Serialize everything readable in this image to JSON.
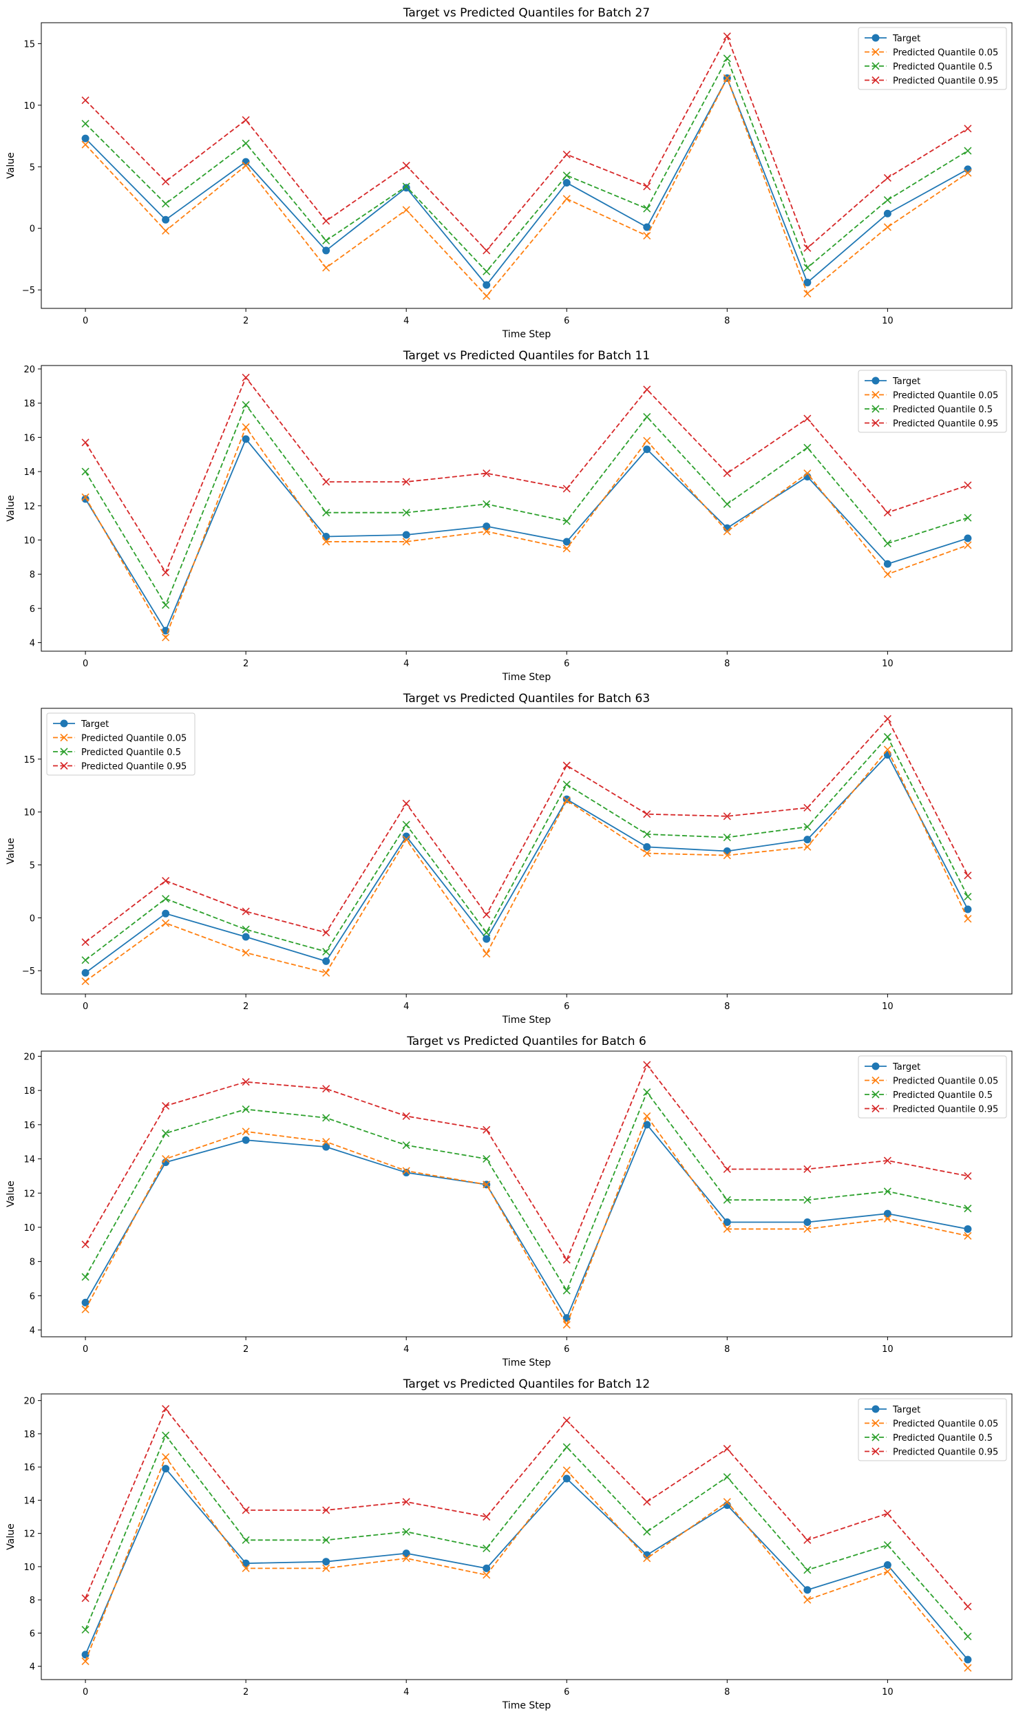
{
  "chart_data": [
    {
      "type": "line",
      "title": "Target vs Predicted Quantiles for Batch 27",
      "xlabel": "Time Step",
      "ylabel": "Value",
      "xlim": [
        -0.55,
        11.55
      ],
      "ylim": [
        -6.5,
        16.7
      ],
      "xticks": [
        0,
        2,
        4,
        6,
        8,
        10
      ],
      "yticks": [
        -5,
        0,
        5,
        10,
        15
      ],
      "legend_position": "upper right",
      "x": [
        0,
        1,
        2,
        3,
        4,
        5,
        6,
        7,
        8,
        9,
        10,
        11
      ],
      "series": [
        {
          "name": "Target",
          "color": "#1f77b4",
          "style": "solid",
          "marker": "circle",
          "values": [
            7.3,
            0.7,
            5.4,
            -1.8,
            3.3,
            -4.6,
            3.7,
            0.1,
            12.2,
            -4.4,
            1.2,
            4.8
          ]
        },
        {
          "name": "Predicted Quantile 0.05",
          "color": "#ff7f0e",
          "style": "dashed",
          "marker": "x",
          "values": [
            6.8,
            -0.2,
            5.1,
            -3.2,
            1.5,
            -5.5,
            2.4,
            -0.6,
            12.2,
            -5.3,
            0.1,
            4.5
          ]
        },
        {
          "name": "Predicted Quantile 0.5",
          "color": "#2ca02c",
          "style": "dashed",
          "marker": "x",
          "values": [
            8.5,
            2.0,
            6.9,
            -1.0,
            3.4,
            -3.5,
            4.3,
            1.6,
            13.8,
            -3.2,
            2.3,
            6.3
          ]
        },
        {
          "name": "Predicted Quantile 0.95",
          "color": "#d62728",
          "style": "dashed",
          "marker": "x",
          "values": [
            10.4,
            3.8,
            8.8,
            0.6,
            5.1,
            -1.8,
            6.0,
            3.4,
            15.6,
            -1.6,
            4.1,
            8.1
          ]
        }
      ]
    },
    {
      "type": "line",
      "title": "Target vs Predicted Quantiles for Batch 11",
      "xlabel": "Time Step",
      "ylabel": "Value",
      "xlim": [
        -0.55,
        11.55
      ],
      "ylim": [
        3.5,
        20.2
      ],
      "xticks": [
        0,
        2,
        4,
        6,
        8,
        10
      ],
      "yticks": [
        4,
        6,
        8,
        10,
        12,
        14,
        16,
        18,
        20
      ],
      "legend_position": "upper right",
      "x": [
        0,
        1,
        2,
        3,
        4,
        5,
        6,
        7,
        8,
        9,
        10,
        11
      ],
      "series": [
        {
          "name": "Target",
          "color": "#1f77b4",
          "style": "solid",
          "marker": "circle",
          "values": [
            12.4,
            4.7,
            15.9,
            10.2,
            10.3,
            10.8,
            9.9,
            15.3,
            10.7,
            13.7,
            8.6,
            10.1
          ]
        },
        {
          "name": "Predicted Quantile 0.05",
          "color": "#ff7f0e",
          "style": "dashed",
          "marker": "x",
          "values": [
            12.5,
            4.3,
            16.6,
            9.9,
            9.9,
            10.5,
            9.5,
            15.8,
            10.5,
            13.9,
            8.0,
            9.7
          ]
        },
        {
          "name": "Predicted Quantile 0.5",
          "color": "#2ca02c",
          "style": "dashed",
          "marker": "x",
          "values": [
            14.0,
            6.2,
            17.9,
            11.6,
            11.6,
            12.1,
            11.1,
            17.2,
            12.1,
            15.4,
            9.8,
            11.3
          ]
        },
        {
          "name": "Predicted Quantile 0.95",
          "color": "#d62728",
          "style": "dashed",
          "marker": "x",
          "values": [
            15.7,
            8.1,
            19.5,
            13.4,
            13.4,
            13.9,
            13.0,
            18.8,
            13.9,
            17.1,
            11.6,
            13.2
          ]
        }
      ]
    },
    {
      "type": "line",
      "title": "Target vs Predicted Quantiles for Batch 63",
      "xlabel": "Time Step",
      "ylabel": "Value",
      "xlim": [
        -0.55,
        11.55
      ],
      "ylim": [
        -7.2,
        19.8
      ],
      "xticks": [
        0,
        2,
        4,
        6,
        8,
        10
      ],
      "yticks": [
        -5,
        0,
        5,
        10,
        15
      ],
      "legend_position": "upper left",
      "x": [
        0,
        1,
        2,
        3,
        4,
        5,
        6,
        7,
        8,
        9,
        10,
        11
      ],
      "series": [
        {
          "name": "Target",
          "color": "#1f77b4",
          "style": "solid",
          "marker": "circle",
          "values": [
            -5.2,
            0.4,
            -1.8,
            -4.1,
            7.7,
            -2.0,
            11.2,
            6.7,
            6.3,
            7.4,
            15.4,
            0.8
          ]
        },
        {
          "name": "Predicted Quantile 0.05",
          "color": "#ff7f0e",
          "style": "dashed",
          "marker": "x",
          "values": [
            -6.0,
            -0.5,
            -3.3,
            -5.2,
            7.4,
            -3.4,
            11.1,
            6.1,
            5.9,
            6.7,
            15.9,
            -0.1
          ]
        },
        {
          "name": "Predicted Quantile 0.5",
          "color": "#2ca02c",
          "style": "dashed",
          "marker": "x",
          "values": [
            -4.0,
            1.8,
            -1.1,
            -3.2,
            8.8,
            -1.4,
            12.6,
            7.9,
            7.6,
            8.6,
            17.1,
            2.0
          ]
        },
        {
          "name": "Predicted Quantile 0.95",
          "color": "#d62728",
          "style": "dashed",
          "marker": "x",
          "values": [
            -2.3,
            3.5,
            0.6,
            -1.4,
            10.8,
            0.3,
            14.4,
            9.8,
            9.6,
            10.4,
            18.8,
            4.0
          ]
        }
      ]
    },
    {
      "type": "line",
      "title": "Target vs Predicted Quantiles for Batch 6",
      "xlabel": "Time Step",
      "ylabel": "Value",
      "xlim": [
        -0.55,
        11.55
      ],
      "ylim": [
        3.6,
        20.3
      ],
      "xticks": [
        0,
        2,
        4,
        6,
        8,
        10
      ],
      "yticks": [
        4,
        6,
        8,
        10,
        12,
        14,
        16,
        18,
        20
      ],
      "legend_position": "upper right",
      "x": [
        0,
        1,
        2,
        3,
        4,
        5,
        6,
        7,
        8,
        9,
        10,
        11
      ],
      "series": [
        {
          "name": "Target",
          "color": "#1f77b4",
          "style": "solid",
          "marker": "circle",
          "values": [
            5.6,
            13.8,
            15.1,
            14.7,
            13.2,
            12.5,
            4.7,
            16.0,
            10.3,
            10.3,
            10.8,
            9.9
          ]
        },
        {
          "name": "Predicted Quantile 0.05",
          "color": "#ff7f0e",
          "style": "dashed",
          "marker": "x",
          "values": [
            5.2,
            14.0,
            15.6,
            15.0,
            13.3,
            12.5,
            4.3,
            16.5,
            9.9,
            9.9,
            10.5,
            9.5
          ]
        },
        {
          "name": "Predicted Quantile 0.5",
          "color": "#2ca02c",
          "style": "dashed",
          "marker": "x",
          "values": [
            7.1,
            15.5,
            16.9,
            16.4,
            14.8,
            14.0,
            6.3,
            17.9,
            11.6,
            11.6,
            12.1,
            11.1
          ]
        },
        {
          "name": "Predicted Quantile 0.95",
          "color": "#d62728",
          "style": "dashed",
          "marker": "x",
          "values": [
            9.0,
            17.1,
            18.5,
            18.1,
            16.5,
            15.7,
            8.1,
            19.5,
            13.4,
            13.4,
            13.9,
            13.0
          ]
        }
      ]
    },
    {
      "type": "line",
      "title": "Target vs Predicted Quantiles for Batch 12",
      "xlabel": "Time Step",
      "ylabel": "Value",
      "xlim": [
        -0.55,
        11.55
      ],
      "ylim": [
        3.2,
        20.4
      ],
      "xticks": [
        0,
        2,
        4,
        6,
        8,
        10
      ],
      "yticks": [
        4,
        6,
        8,
        10,
        12,
        14,
        16,
        18,
        20
      ],
      "legend_position": "upper right",
      "x": [
        0,
        1,
        2,
        3,
        4,
        5,
        6,
        7,
        8,
        9,
        10,
        11
      ],
      "series": [
        {
          "name": "Target",
          "color": "#1f77b4",
          "style": "solid",
          "marker": "circle",
          "values": [
            4.7,
            15.9,
            10.2,
            10.3,
            10.8,
            9.9,
            15.3,
            10.7,
            13.7,
            8.6,
            10.1,
            4.4
          ]
        },
        {
          "name": "Predicted Quantile 0.05",
          "color": "#ff7f0e",
          "style": "dashed",
          "marker": "x",
          "values": [
            4.3,
            16.6,
            9.9,
            9.9,
            10.5,
            9.5,
            15.8,
            10.5,
            13.9,
            8.0,
            9.7,
            3.9
          ]
        },
        {
          "name": "Predicted Quantile 0.5",
          "color": "#2ca02c",
          "style": "dashed",
          "marker": "x",
          "values": [
            6.2,
            17.9,
            11.6,
            11.6,
            12.1,
            11.1,
            17.2,
            12.1,
            15.4,
            9.8,
            11.3,
            5.8
          ]
        },
        {
          "name": "Predicted Quantile 0.95",
          "color": "#d62728",
          "style": "dashed",
          "marker": "x",
          "values": [
            8.1,
            19.5,
            13.4,
            13.4,
            13.9,
            13.0,
            18.8,
            13.9,
            17.1,
            11.6,
            13.2,
            7.6
          ]
        }
      ]
    }
  ]
}
